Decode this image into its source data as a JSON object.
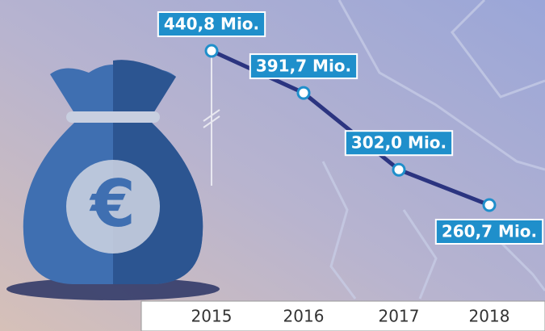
{
  "chart_data": {
    "type": "line",
    "categories": [
      "2015",
      "2016",
      "2017",
      "2018"
    ],
    "values": [
      440.8,
      391.7,
      302.0,
      260.7
    ],
    "value_labels": [
      "440,8 Mio.",
      "391,7 Mio.",
      "302,0 Mio.",
      "260,7 Mio."
    ],
    "color": "#2b3480",
    "label_color": "#1f8fcb"
  }
}
